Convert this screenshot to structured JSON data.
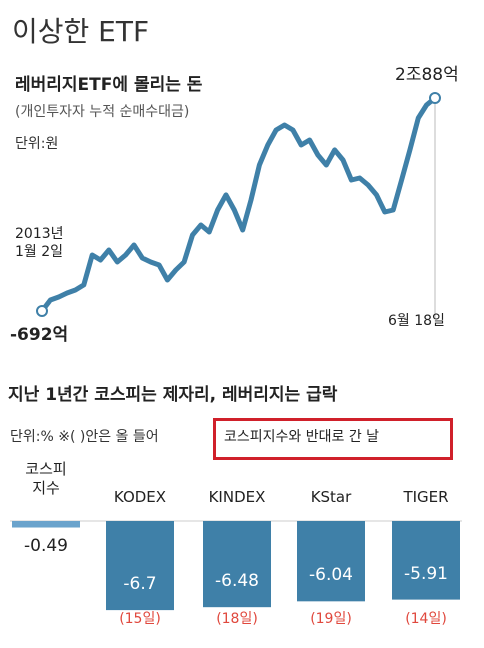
{
  "header": {
    "title": "이상한  ETF"
  },
  "chart_data": [
    {
      "type": "line",
      "title": "레버리지ETF에 몰리는 돈",
      "subtitle": "(개인투자자 누적 순매수대금)",
      "unit": "단위:원",
      "color": "#3f80a8",
      "categories": [
        "2013년\n1월 2일",
        null,
        null,
        null,
        null,
        null,
        null,
        null,
        null,
        null,
        null,
        null,
        null,
        null,
        null,
        null,
        null,
        null,
        null,
        null,
        null,
        null,
        null,
        null,
        null,
        null,
        null,
        null,
        null,
        null,
        null,
        null,
        null,
        null,
        null,
        null,
        null,
        null,
        null,
        null,
        null,
        null,
        null,
        null,
        null,
        null,
        null,
        "6월 18일"
      ],
      "values": [
        -692,
        380,
        670,
        1060,
        1360,
        1850,
        4770,
        4280,
        5260,
        4090,
        4770,
        5750,
        4480,
        4090,
        3800,
        2330,
        3310,
        4090,
        6720,
        7700,
        7020,
        9160,
        10630,
        9160,
        7210,
        10140,
        13550,
        15500,
        16970,
        17450,
        16970,
        15500,
        15990,
        14530,
        13550,
        15020,
        14040,
        12090,
        12280,
        11600,
        10630,
        8970,
        9160,
        12090,
        15020,
        18140,
        19410,
        20088
      ],
      "value_labels": [
        "-692억",
        null,
        null,
        null,
        null,
        null,
        null,
        null,
        null,
        null,
        null,
        null,
        null,
        null,
        null,
        null,
        null,
        null,
        null,
        null,
        null,
        null,
        null,
        null,
        null,
        null,
        null,
        null,
        null,
        null,
        null,
        null,
        null,
        null,
        null,
        null,
        null,
        null,
        null,
        null,
        null,
        null,
        null,
        null,
        null,
        null,
        null,
        "2조88억"
      ]
    },
    {
      "type": "bar",
      "title": "지난 1년간 코스피는 제자리, 레버리지는 급락",
      "subtitle": "단위:% ※( )안은 올 들어",
      "note": "코스피지수와 반대로 간 날",
      "categories": [
        "코스피\n지수",
        "KODEX",
        "KINDEX",
        "KStar",
        "TIGER"
      ],
      "values": [
        -0.49,
        -6.7,
        -6.48,
        -6.04,
        -5.91
      ],
      "colors": [
        "#6aa3cc",
        "#3f80a8",
        "#3f80a8",
        "#3f80a8",
        "#3f80a8"
      ],
      "annotations": [
        null,
        "(15일)",
        "(18일)",
        "(19일)",
        "(14일)"
      ]
    }
  ]
}
